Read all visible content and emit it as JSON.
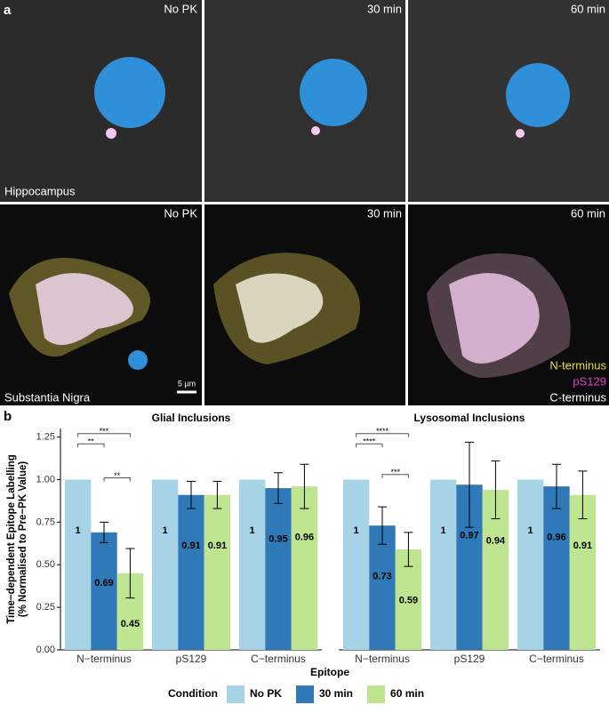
{
  "panel_a": {
    "label": "a",
    "columns": [
      "No PK",
      "30 min",
      "60 min"
    ],
    "rows": [
      "Hippocampus",
      "Substantia Nigra"
    ],
    "scale_bar": "5 µm",
    "channels": [
      {
        "name": "N-terminus",
        "color": "#e6dc3c"
      },
      {
        "name": "pS129",
        "color": "#e040c8"
      },
      {
        "name": "C-terminus",
        "color": "#ffffff"
      }
    ]
  },
  "panel_b_label": "b",
  "chart_data": [
    {
      "type": "bar",
      "title": "Glial Inclusions",
      "ylabel": [
        "Time−dependent Epitope Labelling",
        "(% Normalised to Pre−PK Value)"
      ],
      "xlabel": "Epitope",
      "categories": [
        "N−terminus",
        "pS129",
        "C−terminus"
      ],
      "series": [
        {
          "name": "No PK",
          "color": "#a6d4e6",
          "values": [
            1,
            1,
            1
          ]
        },
        {
          "name": "30 min",
          "color": "#3079b8",
          "values": [
            0.69,
            0.91,
            0.95
          ],
          "errors": [
            0.06,
            0.08,
            0.09
          ]
        },
        {
          "name": "60 min",
          "color": "#bfe591",
          "values": [
            0.45,
            0.91,
            0.96
          ],
          "errors": [
            0.145,
            0.08,
            0.13
          ]
        }
      ],
      "annotations": [
        {
          "text": "***",
          "series": [
            0,
            2
          ],
          "y": 1.27
        },
        {
          "text": "**",
          "series": [
            0,
            1
          ],
          "y": 1.21
        },
        {
          "text": "**",
          "series": [
            1,
            2
          ],
          "y": 1.01
        }
      ],
      "ylim": [
        0,
        1.3
      ],
      "yticks": [
        {
          "value": 0,
          "label": "0.00"
        },
        {
          "value": 0.25,
          "label": "0.25"
        },
        {
          "value": 0.5,
          "label": "0.50"
        },
        {
          "value": 0.75,
          "label": "0.75"
        },
        {
          "value": 1,
          "label": "1.00"
        },
        {
          "value": 1.25,
          "label": "1.25"
        }
      ],
      "legend_title": "Condition",
      "legend": "bottom"
    },
    {
      "type": "bar",
      "title": "Lysosomal Inclusions",
      "categories": [
        "N−terminus",
        "pS129",
        "C−terminus"
      ],
      "series": [
        {
          "name": "No PK",
          "color": "#a6d4e6",
          "values": [
            1,
            1,
            1
          ]
        },
        {
          "name": "30 min",
          "color": "#3079b8",
          "values": [
            0.73,
            0.97,
            0.96
          ],
          "errors": [
            0.11,
            0.25,
            0.13
          ]
        },
        {
          "name": "60 min",
          "color": "#bfe591",
          "values": [
            0.59,
            0.94,
            0.91
          ],
          "errors": [
            0.1,
            0.17,
            0.14
          ]
        }
      ],
      "annotations": [
        {
          "text": "****",
          "series": [
            0,
            2
          ],
          "y": 1.27
        },
        {
          "text": "****",
          "series": [
            0,
            1
          ],
          "y": 1.21
        },
        {
          "text": "***",
          "series": [
            1,
            2
          ],
          "y": 1.03
        }
      ],
      "ylim": [
        0,
        1.3
      ]
    }
  ]
}
